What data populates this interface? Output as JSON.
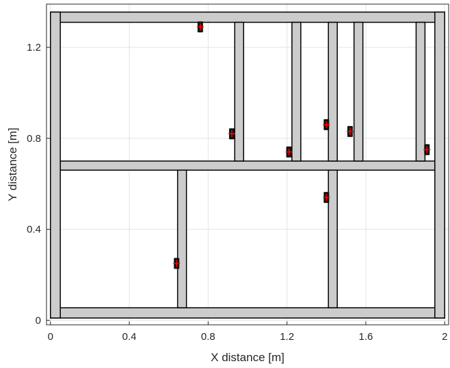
{
  "chart_data": {
    "type": "scatter",
    "title": "",
    "xlabel": "X distance [m]",
    "ylabel": "Y distance [m]",
    "xlim": [
      -0.02,
      2.02
    ],
    "ylim": [
      -0.02,
      1.39
    ],
    "xticks": [
      0,
      0.4,
      0.8,
      1.2,
      1.6,
      2
    ],
    "xtick_labels": [
      "0",
      "0.4",
      "0.8",
      "1.2",
      "1.6",
      "2"
    ],
    "yticks": [
      0,
      0.4,
      0.8,
      1.2
    ],
    "ytick_labels": [
      "0",
      "0.4",
      "0.8",
      "1.2"
    ],
    "grid": true,
    "structure_color": "#cccccc",
    "outline_color": "#000000",
    "marker_color": "#ff0000",
    "structures": [
      {
        "name": "bottom-beam",
        "x": [
          0.0,
          2.0
        ],
        "y": [
          0.01,
          0.055
        ]
      },
      {
        "name": "top-beam",
        "x": [
          0.0,
          2.0
        ],
        "y": [
          1.31,
          1.355
        ]
      },
      {
        "name": "middle-beam",
        "x": [
          0.05,
          1.95
        ],
        "y": [
          0.66,
          0.7
        ]
      },
      {
        "name": "left-post",
        "x": [
          0.0,
          0.05
        ],
        "y": [
          0.01,
          1.355
        ]
      },
      {
        "name": "right-post",
        "x": [
          1.95,
          2.0
        ],
        "y": [
          0.01,
          1.355
        ]
      },
      {
        "name": "lower-stud-1",
        "x": [
          0.645,
          0.69
        ],
        "y": [
          0.055,
          0.66
        ]
      },
      {
        "name": "lower-stud-2",
        "x": [
          1.41,
          1.455
        ],
        "y": [
          0.055,
          0.66
        ]
      },
      {
        "name": "upper-stud-1",
        "x": [
          0.935,
          0.98
        ],
        "y": [
          0.7,
          1.31
        ]
      },
      {
        "name": "upper-stud-2",
        "x": [
          1.225,
          1.27
        ],
        "y": [
          0.7,
          1.31
        ]
      },
      {
        "name": "upper-stud-3",
        "x": [
          1.41,
          1.455
        ],
        "y": [
          0.7,
          1.31
        ]
      },
      {
        "name": "upper-stud-4",
        "x": [
          1.54,
          1.585
        ],
        "y": [
          0.7,
          1.31
        ]
      },
      {
        "name": "upper-stud-5",
        "x": [
          1.855,
          1.9
        ],
        "y": [
          0.7,
          1.31
        ]
      }
    ],
    "points": [
      {
        "x": 0.76,
        "y": 1.29
      },
      {
        "x": 0.92,
        "y": 0.82
      },
      {
        "x": 1.21,
        "y": 0.74
      },
      {
        "x": 1.4,
        "y": 0.86
      },
      {
        "x": 1.52,
        "y": 0.83
      },
      {
        "x": 1.91,
        "y": 0.75
      },
      {
        "x": 1.4,
        "y": 0.54
      },
      {
        "x": 0.64,
        "y": 0.25
      }
    ]
  }
}
